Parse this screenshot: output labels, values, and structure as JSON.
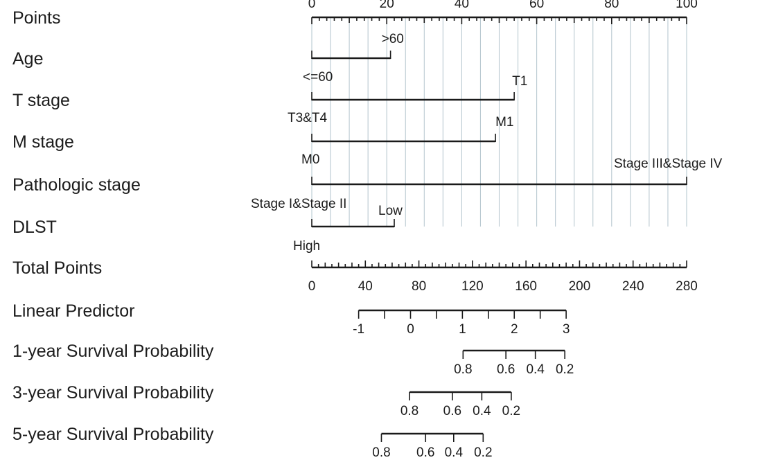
{
  "chart_data": {
    "type": "nomogram",
    "points_scale": {
      "label": "Points",
      "min": 0,
      "max": 100,
      "major_ticks": [
        0,
        20,
        40,
        60,
        80,
        100
      ],
      "minor_step": 2,
      "grid_step": 5
    },
    "variables": [
      {
        "name": "Age",
        "levels": [
          {
            "label": "<=60",
            "points": 0
          },
          {
            "label": ">60",
            "points": 21
          }
        ]
      },
      {
        "name": "T stage",
        "levels": [
          {
            "label": "T3&T4",
            "points": 0
          },
          {
            "label": "T1",
            "points": 54
          }
        ]
      },
      {
        "name": "M stage",
        "levels": [
          {
            "label": "M0",
            "points": 0
          },
          {
            "label": "M1",
            "points": 49
          }
        ]
      },
      {
        "name": "Pathologic stage",
        "levels": [
          {
            "label": "Stage I&Stage II",
            "points": 0
          },
          {
            "label": "Stage III&Stage IV",
            "points": 100
          }
        ]
      },
      {
        "name": "DLST",
        "levels": [
          {
            "label": "High",
            "points": 0
          },
          {
            "label": "Low",
            "points": 22
          }
        ]
      }
    ],
    "total_points": {
      "label": "Total Points",
      "min": 0,
      "max": 280,
      "labeled_ticks": [
        0,
        40,
        80,
        120,
        160,
        200,
        240,
        280
      ],
      "minor_step": 5
    },
    "linear_predictor": {
      "label": "Linear Predictor",
      "range": [
        -1,
        3
      ],
      "labeled_ticks": [
        -1,
        0,
        1,
        2,
        3
      ],
      "tick_step": 0.5,
      "total_points_at": [
        {
          "lp": -1,
          "total_points": 35
        },
        {
          "lp": 3,
          "total_points": 190
        }
      ]
    },
    "survival_scales": [
      {
        "label": "1-year Survival Probability",
        "ticks": [
          {
            "value": "0.8",
            "total_points": 113
          },
          {
            "value": "0.6",
            "total_points": 145
          },
          {
            "value": "0.4",
            "total_points": 167
          },
          {
            "value": "0.2",
            "total_points": 189
          }
        ]
      },
      {
        "label": "3-year Survival Probability",
        "ticks": [
          {
            "value": "0.8",
            "total_points": 73
          },
          {
            "value": "0.6",
            "total_points": 105
          },
          {
            "value": "0.4",
            "total_points": 127
          },
          {
            "value": "0.2",
            "total_points": 149
          }
        ]
      },
      {
        "label": "5-year Survival Probability",
        "ticks": [
          {
            "value": "0.8",
            "total_points": 52
          },
          {
            "value": "0.6",
            "total_points": 85
          },
          {
            "value": "0.4",
            "total_points": 106
          },
          {
            "value": "0.2",
            "total_points": 128
          }
        ]
      }
    ]
  }
}
